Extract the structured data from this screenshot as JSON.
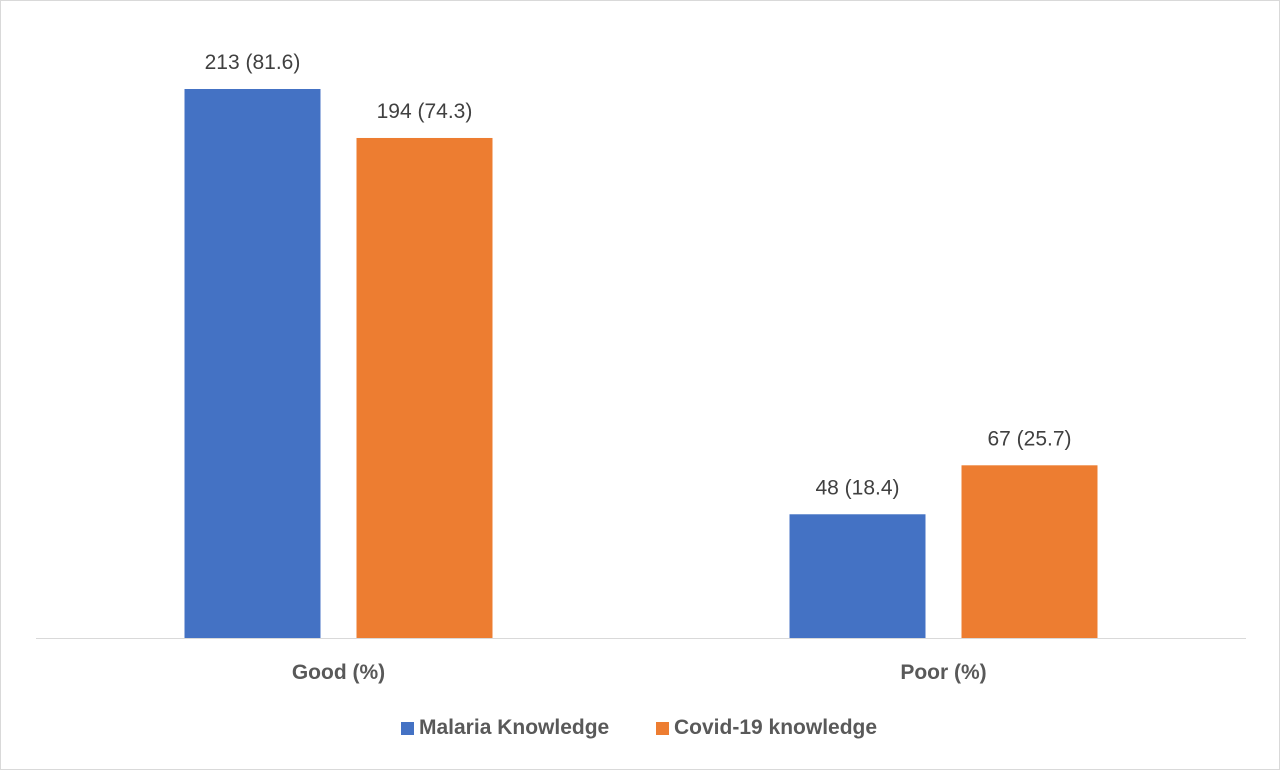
{
  "chart_data": {
    "type": "bar",
    "categories": [
      "Good (%)",
      "Poor (%)"
    ],
    "series": [
      {
        "name": "Malaria Knowledge",
        "color": "#4472c4",
        "values": [
          213,
          48
        ],
        "labels": [
          "213 (81.6)",
          "48 (18.4)"
        ]
      },
      {
        "name": "Covid-19 knowledge",
        "color": "#ed7d31",
        "values": [
          194,
          67
        ],
        "labels": [
          "194 (74.3)",
          "67 (25.7)"
        ]
      }
    ],
    "ylim": [
      0,
      213
    ],
    "grid": false,
    "legend": "bottom-center",
    "axis_color": "#d9d9d9"
  }
}
